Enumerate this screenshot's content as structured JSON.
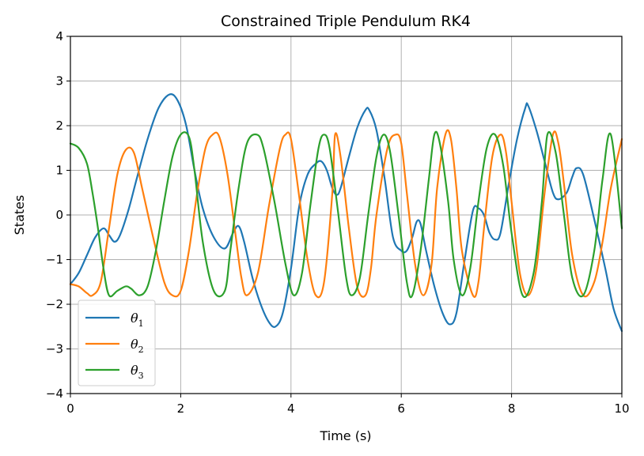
{
  "chart_data": {
    "type": "line",
    "title": "Constrained Triple Pendulum RK4",
    "xlabel": "Time (s)",
    "ylabel": "States",
    "xlim": [
      0,
      10
    ],
    "ylim": [
      -4,
      4
    ],
    "xticks": [
      "0",
      "2",
      "4",
      "6",
      "8",
      "10"
    ],
    "yticks": [
      "−4",
      "−3",
      "−2",
      "−1",
      "0",
      "1",
      "2",
      "3",
      "4"
    ],
    "grid": true,
    "legend_position": "lower-left",
    "series": [
      {
        "name": "θ1",
        "symbol": "θ",
        "subscript": "1",
        "color": "#1f77b4",
        "x": [
          0,
          0.15,
          0.3,
          0.45,
          0.6,
          0.7,
          0.8,
          0.9,
          1.05,
          1.2,
          1.4,
          1.6,
          1.8,
          1.95,
          2.1,
          2.25,
          2.4,
          2.6,
          2.8,
          2.95,
          3.05,
          3.15,
          3.3,
          3.45,
          3.6,
          3.72,
          3.85,
          4.0,
          4.15,
          4.3,
          4.45,
          4.55,
          4.65,
          4.75,
          4.83,
          4.9,
          5.05,
          5.2,
          5.35,
          5.42,
          5.55,
          5.7,
          5.85,
          6.0,
          6.1,
          6.2,
          6.28,
          6.35,
          6.45,
          6.6,
          6.75,
          6.88,
          7.0,
          7.15,
          7.3,
          7.4,
          7.5,
          7.6,
          7.7,
          7.8,
          7.95,
          8.1,
          8.25,
          8.3,
          8.45,
          8.6,
          8.75,
          8.85,
          9.0,
          9.1,
          9.18,
          9.3,
          9.5,
          9.7,
          9.85,
          10.0
        ],
        "y": [
          -1.55,
          -1.3,
          -0.9,
          -0.5,
          -0.3,
          -0.45,
          -0.6,
          -0.45,
          0.1,
          0.8,
          1.7,
          2.4,
          2.7,
          2.55,
          2.0,
          1.0,
          0.15,
          -0.5,
          -0.75,
          -0.4,
          -0.25,
          -0.6,
          -1.4,
          -2.0,
          -2.4,
          -2.5,
          -2.2,
          -1.2,
          0.2,
          0.9,
          1.15,
          1.2,
          1.0,
          0.6,
          0.45,
          0.6,
          1.3,
          1.95,
          2.35,
          2.35,
          1.9,
          0.8,
          -0.5,
          -0.8,
          -0.8,
          -0.5,
          -0.15,
          -0.2,
          -0.8,
          -1.6,
          -2.2,
          -2.45,
          -2.2,
          -1.0,
          0.1,
          0.15,
          0.0,
          -0.4,
          -0.55,
          -0.4,
          0.7,
          1.7,
          2.4,
          2.45,
          1.9,
          1.2,
          0.5,
          0.35,
          0.5,
          0.85,
          1.05,
          0.9,
          -0.1,
          -1.2,
          -2.1,
          -2.6
        ]
      },
      {
        "name": "θ2",
        "symbol": "θ",
        "subscript": "2",
        "color": "#ff7f0e",
        "x": [
          0,
          0.15,
          0.3,
          0.4,
          0.55,
          0.7,
          0.85,
          1.0,
          1.15,
          1.3,
          1.5,
          1.7,
          1.85,
          2.0,
          2.15,
          2.3,
          2.45,
          2.58,
          2.7,
          2.85,
          3.0,
          3.1,
          3.2,
          3.4,
          3.6,
          3.8,
          3.9,
          4.0,
          4.15,
          4.3,
          4.45,
          4.6,
          4.75,
          4.8,
          4.9,
          5.05,
          5.2,
          5.35,
          5.45,
          5.55,
          5.75,
          5.9,
          6.0,
          6.1,
          6.25,
          6.4,
          6.55,
          6.65,
          6.8,
          6.9,
          7.0,
          7.1,
          7.3,
          7.4,
          7.5,
          7.65,
          7.8,
          7.9,
          8.0,
          8.15,
          8.3,
          8.45,
          8.6,
          8.75,
          8.85,
          8.95,
          9.1,
          9.3,
          9.5,
          9.65,
          9.8,
          10.0
        ],
        "y": [
          -1.55,
          -1.6,
          -1.75,
          -1.8,
          -1.5,
          -0.3,
          0.9,
          1.45,
          1.4,
          0.6,
          -0.5,
          -1.5,
          -1.8,
          -1.7,
          -0.8,
          0.5,
          1.5,
          1.8,
          1.75,
          0.9,
          -0.5,
          -1.4,
          -1.8,
          -1.3,
          0.2,
          1.5,
          1.8,
          1.7,
          0.4,
          -1.0,
          -1.8,
          -1.5,
          0.5,
          1.8,
          1.3,
          -0.3,
          -1.6,
          -1.8,
          -1.2,
          0.0,
          1.5,
          1.8,
          1.6,
          0.5,
          -1.1,
          -1.8,
          -1.1,
          0.6,
          1.8,
          1.7,
          0.6,
          -0.8,
          -1.8,
          -1.5,
          -0.3,
          1.3,
          1.8,
          1.4,
          0.3,
          -1.3,
          -1.8,
          -1.2,
          0.5,
          1.8,
          1.6,
          0.7,
          -0.9,
          -1.8,
          -1.5,
          -0.6,
          0.6,
          1.7
        ]
      },
      {
        "name": "θ3",
        "symbol": "θ",
        "subscript": "3",
        "color": "#2ca02c",
        "x": [
          0,
          0.15,
          0.3,
          0.4,
          0.5,
          0.6,
          0.7,
          0.85,
          1.0,
          1.1,
          1.25,
          1.4,
          1.55,
          1.7,
          1.85,
          2.0,
          2.15,
          2.25,
          2.4,
          2.6,
          2.8,
          2.9,
          3.05,
          3.2,
          3.38,
          3.5,
          3.7,
          3.9,
          4.05,
          4.2,
          4.35,
          4.5,
          4.6,
          4.7,
          4.85,
          5.0,
          5.1,
          5.25,
          5.4,
          5.55,
          5.68,
          5.8,
          5.95,
          6.1,
          6.2,
          6.35,
          6.5,
          6.6,
          6.7,
          6.85,
          6.95,
          7.1,
          7.25,
          7.4,
          7.55,
          7.7,
          7.85,
          8.0,
          8.2,
          8.4,
          8.55,
          8.65,
          8.8,
          8.95,
          9.1,
          9.3,
          9.5,
          9.65,
          9.8,
          10.0
        ],
        "y": [
          1.6,
          1.5,
          1.15,
          0.5,
          -0.3,
          -1.2,
          -1.8,
          -1.7,
          -1.6,
          -1.65,
          -1.8,
          -1.6,
          -0.8,
          0.3,
          1.3,
          1.8,
          1.75,
          1.0,
          -0.6,
          -1.7,
          -1.7,
          -0.8,
          0.6,
          1.6,
          1.8,
          1.5,
          0.3,
          -1.1,
          -1.8,
          -1.3,
          0.2,
          1.5,
          1.8,
          1.5,
          0.1,
          -1.4,
          -1.8,
          -1.4,
          0.0,
          1.3,
          1.8,
          1.4,
          0.0,
          -1.5,
          -1.8,
          -0.8,
          0.8,
          1.8,
          1.6,
          0.3,
          -1.0,
          -1.8,
          -1.2,
          0.3,
          1.5,
          1.8,
          1.1,
          -0.4,
          -1.8,
          -1.3,
          0.3,
          1.8,
          1.4,
          0.0,
          -1.4,
          -1.8,
          -0.8,
          0.8,
          1.8,
          -0.3
        ]
      }
    ]
  }
}
